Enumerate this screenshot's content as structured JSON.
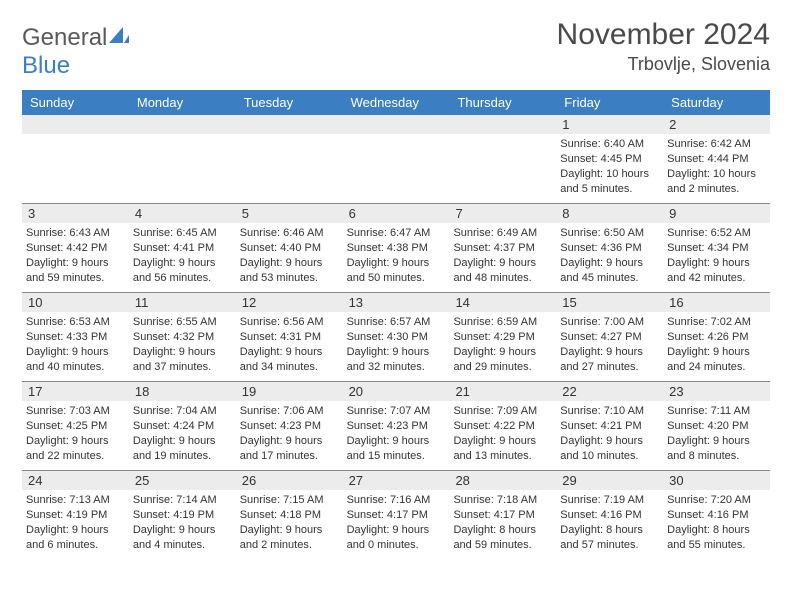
{
  "logo": {
    "text_gray": "General",
    "text_blue": "Blue"
  },
  "title": "November 2024",
  "location": "Trbovlje, Slovenia",
  "colors": {
    "header_bg": "#3b7ec1",
    "header_text": "#ffffff",
    "daynum_bg": "#ececec",
    "border": "#888888",
    "body_text": "#333333",
    "title_text": "#4a4a4a"
  },
  "day_labels": [
    "Sunday",
    "Monday",
    "Tuesday",
    "Wednesday",
    "Thursday",
    "Friday",
    "Saturday"
  ],
  "weeks": [
    [
      {
        "n": "",
        "sunrise": "",
        "sunset": "",
        "daylight": ""
      },
      {
        "n": "",
        "sunrise": "",
        "sunset": "",
        "daylight": ""
      },
      {
        "n": "",
        "sunrise": "",
        "sunset": "",
        "daylight": ""
      },
      {
        "n": "",
        "sunrise": "",
        "sunset": "",
        "daylight": ""
      },
      {
        "n": "",
        "sunrise": "",
        "sunset": "",
        "daylight": ""
      },
      {
        "n": "1",
        "sunrise": "Sunrise: 6:40 AM",
        "sunset": "Sunset: 4:45 PM",
        "daylight": "Daylight: 10 hours and 5 minutes."
      },
      {
        "n": "2",
        "sunrise": "Sunrise: 6:42 AM",
        "sunset": "Sunset: 4:44 PM",
        "daylight": "Daylight: 10 hours and 2 minutes."
      }
    ],
    [
      {
        "n": "3",
        "sunrise": "Sunrise: 6:43 AM",
        "sunset": "Sunset: 4:42 PM",
        "daylight": "Daylight: 9 hours and 59 minutes."
      },
      {
        "n": "4",
        "sunrise": "Sunrise: 6:45 AM",
        "sunset": "Sunset: 4:41 PM",
        "daylight": "Daylight: 9 hours and 56 minutes."
      },
      {
        "n": "5",
        "sunrise": "Sunrise: 6:46 AM",
        "sunset": "Sunset: 4:40 PM",
        "daylight": "Daylight: 9 hours and 53 minutes."
      },
      {
        "n": "6",
        "sunrise": "Sunrise: 6:47 AM",
        "sunset": "Sunset: 4:38 PM",
        "daylight": "Daylight: 9 hours and 50 minutes."
      },
      {
        "n": "7",
        "sunrise": "Sunrise: 6:49 AM",
        "sunset": "Sunset: 4:37 PM",
        "daylight": "Daylight: 9 hours and 48 minutes."
      },
      {
        "n": "8",
        "sunrise": "Sunrise: 6:50 AM",
        "sunset": "Sunset: 4:36 PM",
        "daylight": "Daylight: 9 hours and 45 minutes."
      },
      {
        "n": "9",
        "sunrise": "Sunrise: 6:52 AM",
        "sunset": "Sunset: 4:34 PM",
        "daylight": "Daylight: 9 hours and 42 minutes."
      }
    ],
    [
      {
        "n": "10",
        "sunrise": "Sunrise: 6:53 AM",
        "sunset": "Sunset: 4:33 PM",
        "daylight": "Daylight: 9 hours and 40 minutes."
      },
      {
        "n": "11",
        "sunrise": "Sunrise: 6:55 AM",
        "sunset": "Sunset: 4:32 PM",
        "daylight": "Daylight: 9 hours and 37 minutes."
      },
      {
        "n": "12",
        "sunrise": "Sunrise: 6:56 AM",
        "sunset": "Sunset: 4:31 PM",
        "daylight": "Daylight: 9 hours and 34 minutes."
      },
      {
        "n": "13",
        "sunrise": "Sunrise: 6:57 AM",
        "sunset": "Sunset: 4:30 PM",
        "daylight": "Daylight: 9 hours and 32 minutes."
      },
      {
        "n": "14",
        "sunrise": "Sunrise: 6:59 AM",
        "sunset": "Sunset: 4:29 PM",
        "daylight": "Daylight: 9 hours and 29 minutes."
      },
      {
        "n": "15",
        "sunrise": "Sunrise: 7:00 AM",
        "sunset": "Sunset: 4:27 PM",
        "daylight": "Daylight: 9 hours and 27 minutes."
      },
      {
        "n": "16",
        "sunrise": "Sunrise: 7:02 AM",
        "sunset": "Sunset: 4:26 PM",
        "daylight": "Daylight: 9 hours and 24 minutes."
      }
    ],
    [
      {
        "n": "17",
        "sunrise": "Sunrise: 7:03 AM",
        "sunset": "Sunset: 4:25 PM",
        "daylight": "Daylight: 9 hours and 22 minutes."
      },
      {
        "n": "18",
        "sunrise": "Sunrise: 7:04 AM",
        "sunset": "Sunset: 4:24 PM",
        "daylight": "Daylight: 9 hours and 19 minutes."
      },
      {
        "n": "19",
        "sunrise": "Sunrise: 7:06 AM",
        "sunset": "Sunset: 4:23 PM",
        "daylight": "Daylight: 9 hours and 17 minutes."
      },
      {
        "n": "20",
        "sunrise": "Sunrise: 7:07 AM",
        "sunset": "Sunset: 4:23 PM",
        "daylight": "Daylight: 9 hours and 15 minutes."
      },
      {
        "n": "21",
        "sunrise": "Sunrise: 7:09 AM",
        "sunset": "Sunset: 4:22 PM",
        "daylight": "Daylight: 9 hours and 13 minutes."
      },
      {
        "n": "22",
        "sunrise": "Sunrise: 7:10 AM",
        "sunset": "Sunset: 4:21 PM",
        "daylight": "Daylight: 9 hours and 10 minutes."
      },
      {
        "n": "23",
        "sunrise": "Sunrise: 7:11 AM",
        "sunset": "Sunset: 4:20 PM",
        "daylight": "Daylight: 9 hours and 8 minutes."
      }
    ],
    [
      {
        "n": "24",
        "sunrise": "Sunrise: 7:13 AM",
        "sunset": "Sunset: 4:19 PM",
        "daylight": "Daylight: 9 hours and 6 minutes."
      },
      {
        "n": "25",
        "sunrise": "Sunrise: 7:14 AM",
        "sunset": "Sunset: 4:19 PM",
        "daylight": "Daylight: 9 hours and 4 minutes."
      },
      {
        "n": "26",
        "sunrise": "Sunrise: 7:15 AM",
        "sunset": "Sunset: 4:18 PM",
        "daylight": "Daylight: 9 hours and 2 minutes."
      },
      {
        "n": "27",
        "sunrise": "Sunrise: 7:16 AM",
        "sunset": "Sunset: 4:17 PM",
        "daylight": "Daylight: 9 hours and 0 minutes."
      },
      {
        "n": "28",
        "sunrise": "Sunrise: 7:18 AM",
        "sunset": "Sunset: 4:17 PM",
        "daylight": "Daylight: 8 hours and 59 minutes."
      },
      {
        "n": "29",
        "sunrise": "Sunrise: 7:19 AM",
        "sunset": "Sunset: 4:16 PM",
        "daylight": "Daylight: 8 hours and 57 minutes."
      },
      {
        "n": "30",
        "sunrise": "Sunrise: 7:20 AM",
        "sunset": "Sunset: 4:16 PM",
        "daylight": "Daylight: 8 hours and 55 minutes."
      }
    ]
  ]
}
